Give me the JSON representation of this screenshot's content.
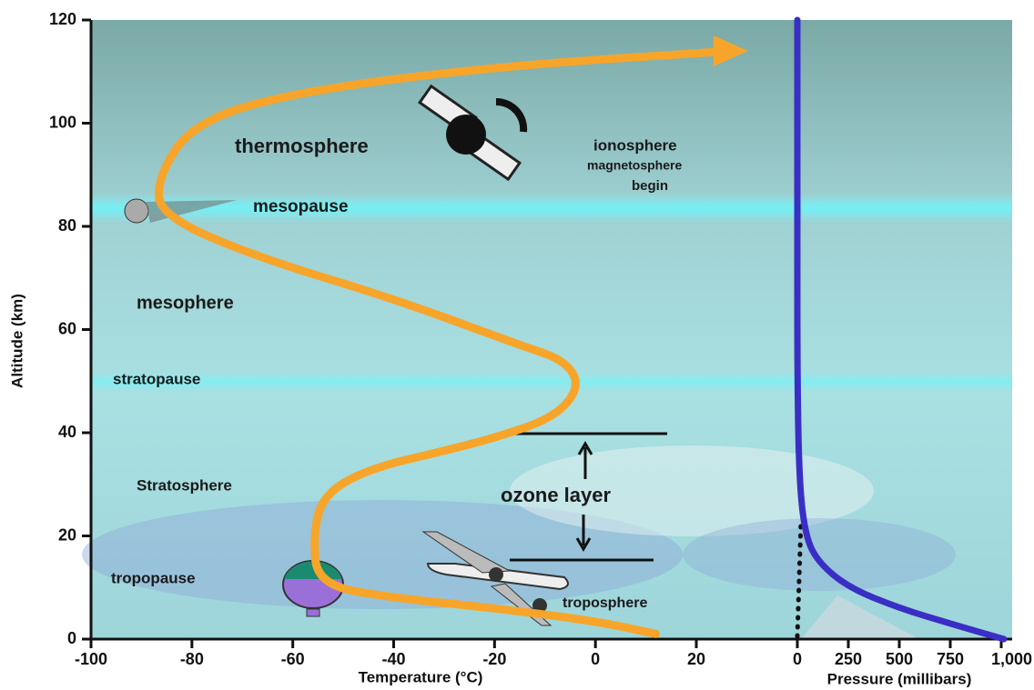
{
  "chart_data": {
    "type": "line",
    "y_label": "Altitude (km)",
    "x_label": "Temperature (°C)",
    "x2_label": "Pressure (millibars)",
    "ylim": [
      0,
      120
    ],
    "yticks": [
      0,
      20,
      40,
      60,
      80,
      100,
      120
    ],
    "xlim": [
      -100,
      20
    ],
    "xticks": [
      -100,
      -80,
      -60,
      -40,
      -20,
      0,
      20
    ],
    "x2lim": [
      0,
      1000
    ],
    "x2ticks": [
      0,
      250,
      500,
      750,
      {
        "value": 1000,
        "label": "1,000"
      }
    ],
    "series": [
      {
        "color": "#f7a52a",
        "x": [
          12,
          0,
          -20,
          -40,
          -55,
          -56,
          -54,
          -45,
          -30,
          -20,
          -8,
          -3,
          -6,
          -15,
          -40,
          -67,
          -86,
          -87,
          -80,
          -60,
          -20,
          27
        ],
        "values": [
          1,
          3.5,
          6,
          8,
          10.5,
          20,
          28,
          33,
          36.5,
          39,
          43,
          49,
          54,
          57,
          66,
          74,
          82,
          89,
          100,
          106,
          111,
          114
        ]
      },
      {
        "color": "#3a2fc4",
        "axis": "x2",
        "x": [
          0,
          0,
          0,
          10,
          40,
          100,
          250,
          500,
          750,
          1013
        ],
        "values": [
          120,
          80,
          50,
          30,
          20,
          15,
          10,
          6,
          3,
          0
        ]
      }
    ],
    "annotations": [
      "thermosphere",
      "mesopause",
      "mesophere",
      "stratopause",
      "Stratosphere",
      "tropopause",
      "ionosphere",
      "magnetosphere",
      "begin",
      "ozone layer",
      "troposphere"
    ]
  }
}
